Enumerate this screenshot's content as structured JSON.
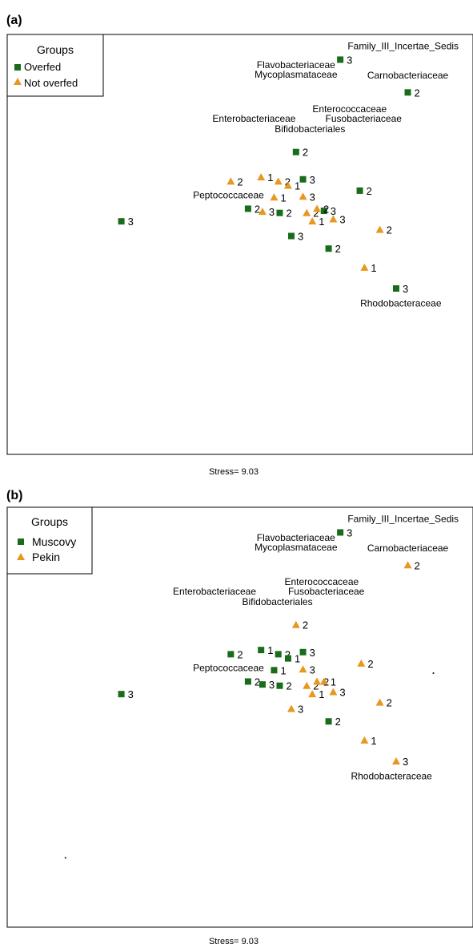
{
  "colors": {
    "green": "#1a6b1a",
    "orange": "#e8971f",
    "frame": "#000000"
  },
  "chart_data": [
    {
      "type": "scatter",
      "panel_label": "(a)",
      "stress_label": "Stress= 9.03",
      "legend": {
        "title": "Groups",
        "placement": "top-left",
        "entries": [
          {
            "label": "Overfed",
            "marker": "square",
            "color": "#1a6b1a"
          },
          {
            "label": "Not overfed",
            "marker": "triangle",
            "color": "#e8971f"
          }
        ]
      },
      "xlim": [
        0,
        100
      ],
      "ylim": [
        0,
        100
      ],
      "points": [
        {
          "x": 71.5,
          "y": 94.0,
          "group": 0,
          "label": "3"
        },
        {
          "x": 86.0,
          "y": 86.2,
          "group": 0,
          "label": "2"
        },
        {
          "x": 62.0,
          "y": 72.0,
          "group": 0,
          "label": "2"
        },
        {
          "x": 63.5,
          "y": 65.5,
          "group": 0,
          "label": "3"
        },
        {
          "x": 75.7,
          "y": 62.8,
          "group": 0,
          "label": "2"
        },
        {
          "x": 51.7,
          "y": 58.5,
          "group": 0,
          "label": "2"
        },
        {
          "x": 58.5,
          "y": 57.5,
          "group": 0,
          "label": "2"
        },
        {
          "x": 68.0,
          "y": 58.0,
          "group": 0,
          "label": "3"
        },
        {
          "x": 24.5,
          "y": 55.5,
          "group": 0,
          "label": "3"
        },
        {
          "x": 61.0,
          "y": 52.0,
          "group": 0,
          "label": "3"
        },
        {
          "x": 69.0,
          "y": 49.0,
          "group": 0,
          "label": "2"
        },
        {
          "x": 83.5,
          "y": 39.5,
          "group": 0,
          "label": "3"
        },
        {
          "x": 48.0,
          "y": 65.0,
          "group": 1,
          "label": "2"
        },
        {
          "x": 54.5,
          "y": 66.0,
          "group": 1,
          "label": "1"
        },
        {
          "x": 58.2,
          "y": 65.0,
          "group": 1,
          "label": "2"
        },
        {
          "x": 60.3,
          "y": 64.0,
          "group": 1,
          "label": "1"
        },
        {
          "x": 57.3,
          "y": 61.2,
          "group": 1,
          "label": "1"
        },
        {
          "x": 63.5,
          "y": 61.4,
          "group": 1,
          "label": "3"
        },
        {
          "x": 54.8,
          "y": 57.8,
          "group": 1,
          "label": "3"
        },
        {
          "x": 64.3,
          "y": 57.5,
          "group": 1,
          "label": "2"
        },
        {
          "x": 66.5,
          "y": 58.5,
          "group": 1,
          "label": "2"
        },
        {
          "x": 65.5,
          "y": 55.5,
          "group": 1,
          "label": "1"
        },
        {
          "x": 70.0,
          "y": 56.0,
          "group": 1,
          "label": "3"
        },
        {
          "x": 80.0,
          "y": 53.5,
          "group": 1,
          "label": "2"
        },
        {
          "x": 76.7,
          "y": 44.5,
          "group": 1,
          "label": "1"
        }
      ],
      "annotations": [
        {
          "text": "Family_III_Incertae_Sedis",
          "x": 85.0,
          "y": 96.5
        },
        {
          "text": "Flavobacteriaceae",
          "x": 62.0,
          "y": 92.0
        },
        {
          "text": "Mycoplasmataceae",
          "x": 62.0,
          "y": 89.7
        },
        {
          "text": "Carnobacteriaceae",
          "x": 86.0,
          "y": 89.5
        },
        {
          "text": "Enterococcaceae",
          "x": 73.5,
          "y": 81.5
        },
        {
          "text": "Fusobacteriaceae",
          "x": 76.5,
          "y": 79.2
        },
        {
          "text": "Enterobacteriaceae",
          "x": 53.0,
          "y": 79.2
        },
        {
          "text": "Bifidobacteriales",
          "x": 65.0,
          "y": 76.7
        },
        {
          "text": "Peptococcaceae",
          "x": 47.5,
          "y": 61.0
        },
        {
          "text": "Rhodobacteraceae",
          "x": 84.5,
          "y": 35.2
        }
      ]
    },
    {
      "type": "scatter",
      "panel_label": "(b)",
      "stress_label": "Stress= 9.03",
      "legend": {
        "title": "Groups",
        "placement": "top-left",
        "entries": [
          {
            "label": "Muscovy",
            "marker": "square",
            "color": "#1a6b1a"
          },
          {
            "label": "Pekin",
            "marker": "triangle",
            "color": "#e8971f"
          }
        ]
      },
      "xlim": [
        0,
        100
      ],
      "ylim": [
        0,
        100
      ],
      "points": [
        {
          "x": 71.5,
          "y": 94.0,
          "group": 0,
          "label": "3"
        },
        {
          "x": 86.0,
          "y": 86.2,
          "group": 1,
          "label": "2"
        },
        {
          "x": 62.0,
          "y": 72.0,
          "group": 1,
          "label": "2"
        },
        {
          "x": 48.0,
          "y": 65.0,
          "group": 0,
          "label": "2"
        },
        {
          "x": 54.5,
          "y": 66.0,
          "group": 0,
          "label": "1"
        },
        {
          "x": 58.2,
          "y": 65.0,
          "group": 0,
          "label": "2"
        },
        {
          "x": 63.5,
          "y": 65.5,
          "group": 0,
          "label": "3"
        },
        {
          "x": 60.3,
          "y": 64.0,
          "group": 0,
          "label": "1"
        },
        {
          "x": 57.3,
          "y": 61.2,
          "group": 0,
          "label": "1"
        },
        {
          "x": 63.5,
          "y": 61.4,
          "group": 1,
          "label": "3"
        },
        {
          "x": 76.0,
          "y": 62.8,
          "group": 1,
          "label": "2"
        },
        {
          "x": 51.7,
          "y": 58.5,
          "group": 0,
          "label": "2"
        },
        {
          "x": 54.8,
          "y": 57.8,
          "group": 0,
          "label": "3"
        },
        {
          "x": 58.5,
          "y": 57.5,
          "group": 0,
          "label": "2"
        },
        {
          "x": 64.3,
          "y": 57.5,
          "group": 1,
          "label": "2"
        },
        {
          "x": 66.5,
          "y": 58.5,
          "group": 1,
          "label": "2"
        },
        {
          "x": 68.0,
          "y": 58.5,
          "group": 1,
          "label": "1"
        },
        {
          "x": 65.5,
          "y": 55.5,
          "group": 1,
          "label": "1"
        },
        {
          "x": 70.0,
          "y": 56.0,
          "group": 1,
          "label": "3"
        },
        {
          "x": 24.5,
          "y": 55.5,
          "group": 0,
          "label": "3"
        },
        {
          "x": 80.0,
          "y": 53.5,
          "group": 1,
          "label": "2"
        },
        {
          "x": 61.0,
          "y": 52.0,
          "group": 1,
          "label": "3"
        },
        {
          "x": 69.0,
          "y": 49.0,
          "group": 0,
          "label": "2"
        },
        {
          "x": 76.7,
          "y": 44.5,
          "group": 1,
          "label": "1"
        },
        {
          "x": 83.5,
          "y": 39.5,
          "group": 1,
          "label": "3"
        }
      ],
      "dots": [
        {
          "x": 91.5,
          "y": 60.5
        },
        {
          "x": 12.5,
          "y": 16.5
        }
      ],
      "annotations": [
        {
          "text": "Family_III_Incertae_Sedis",
          "x": 85.0,
          "y": 96.5
        },
        {
          "text": "Flavobacteriaceae",
          "x": 62.0,
          "y": 92.0
        },
        {
          "text": "Mycoplasmataceae",
          "x": 62.0,
          "y": 89.7
        },
        {
          "text": "Carnobacteriaceae",
          "x": 86.0,
          "y": 89.5
        },
        {
          "text": "Enterococcaceae",
          "x": 67.5,
          "y": 81.5
        },
        {
          "text": "Fusobacteriaceae",
          "x": 68.5,
          "y": 79.2
        },
        {
          "text": "Enterobacteriaceae",
          "x": 44.5,
          "y": 79.2
        },
        {
          "text": "Bifidobacteriales",
          "x": 58.0,
          "y": 76.7
        },
        {
          "text": "Peptococcaceae",
          "x": 47.5,
          "y": 61.0
        },
        {
          "text": "Rhodobacteraceae",
          "x": 82.5,
          "y": 35.2
        }
      ]
    }
  ]
}
